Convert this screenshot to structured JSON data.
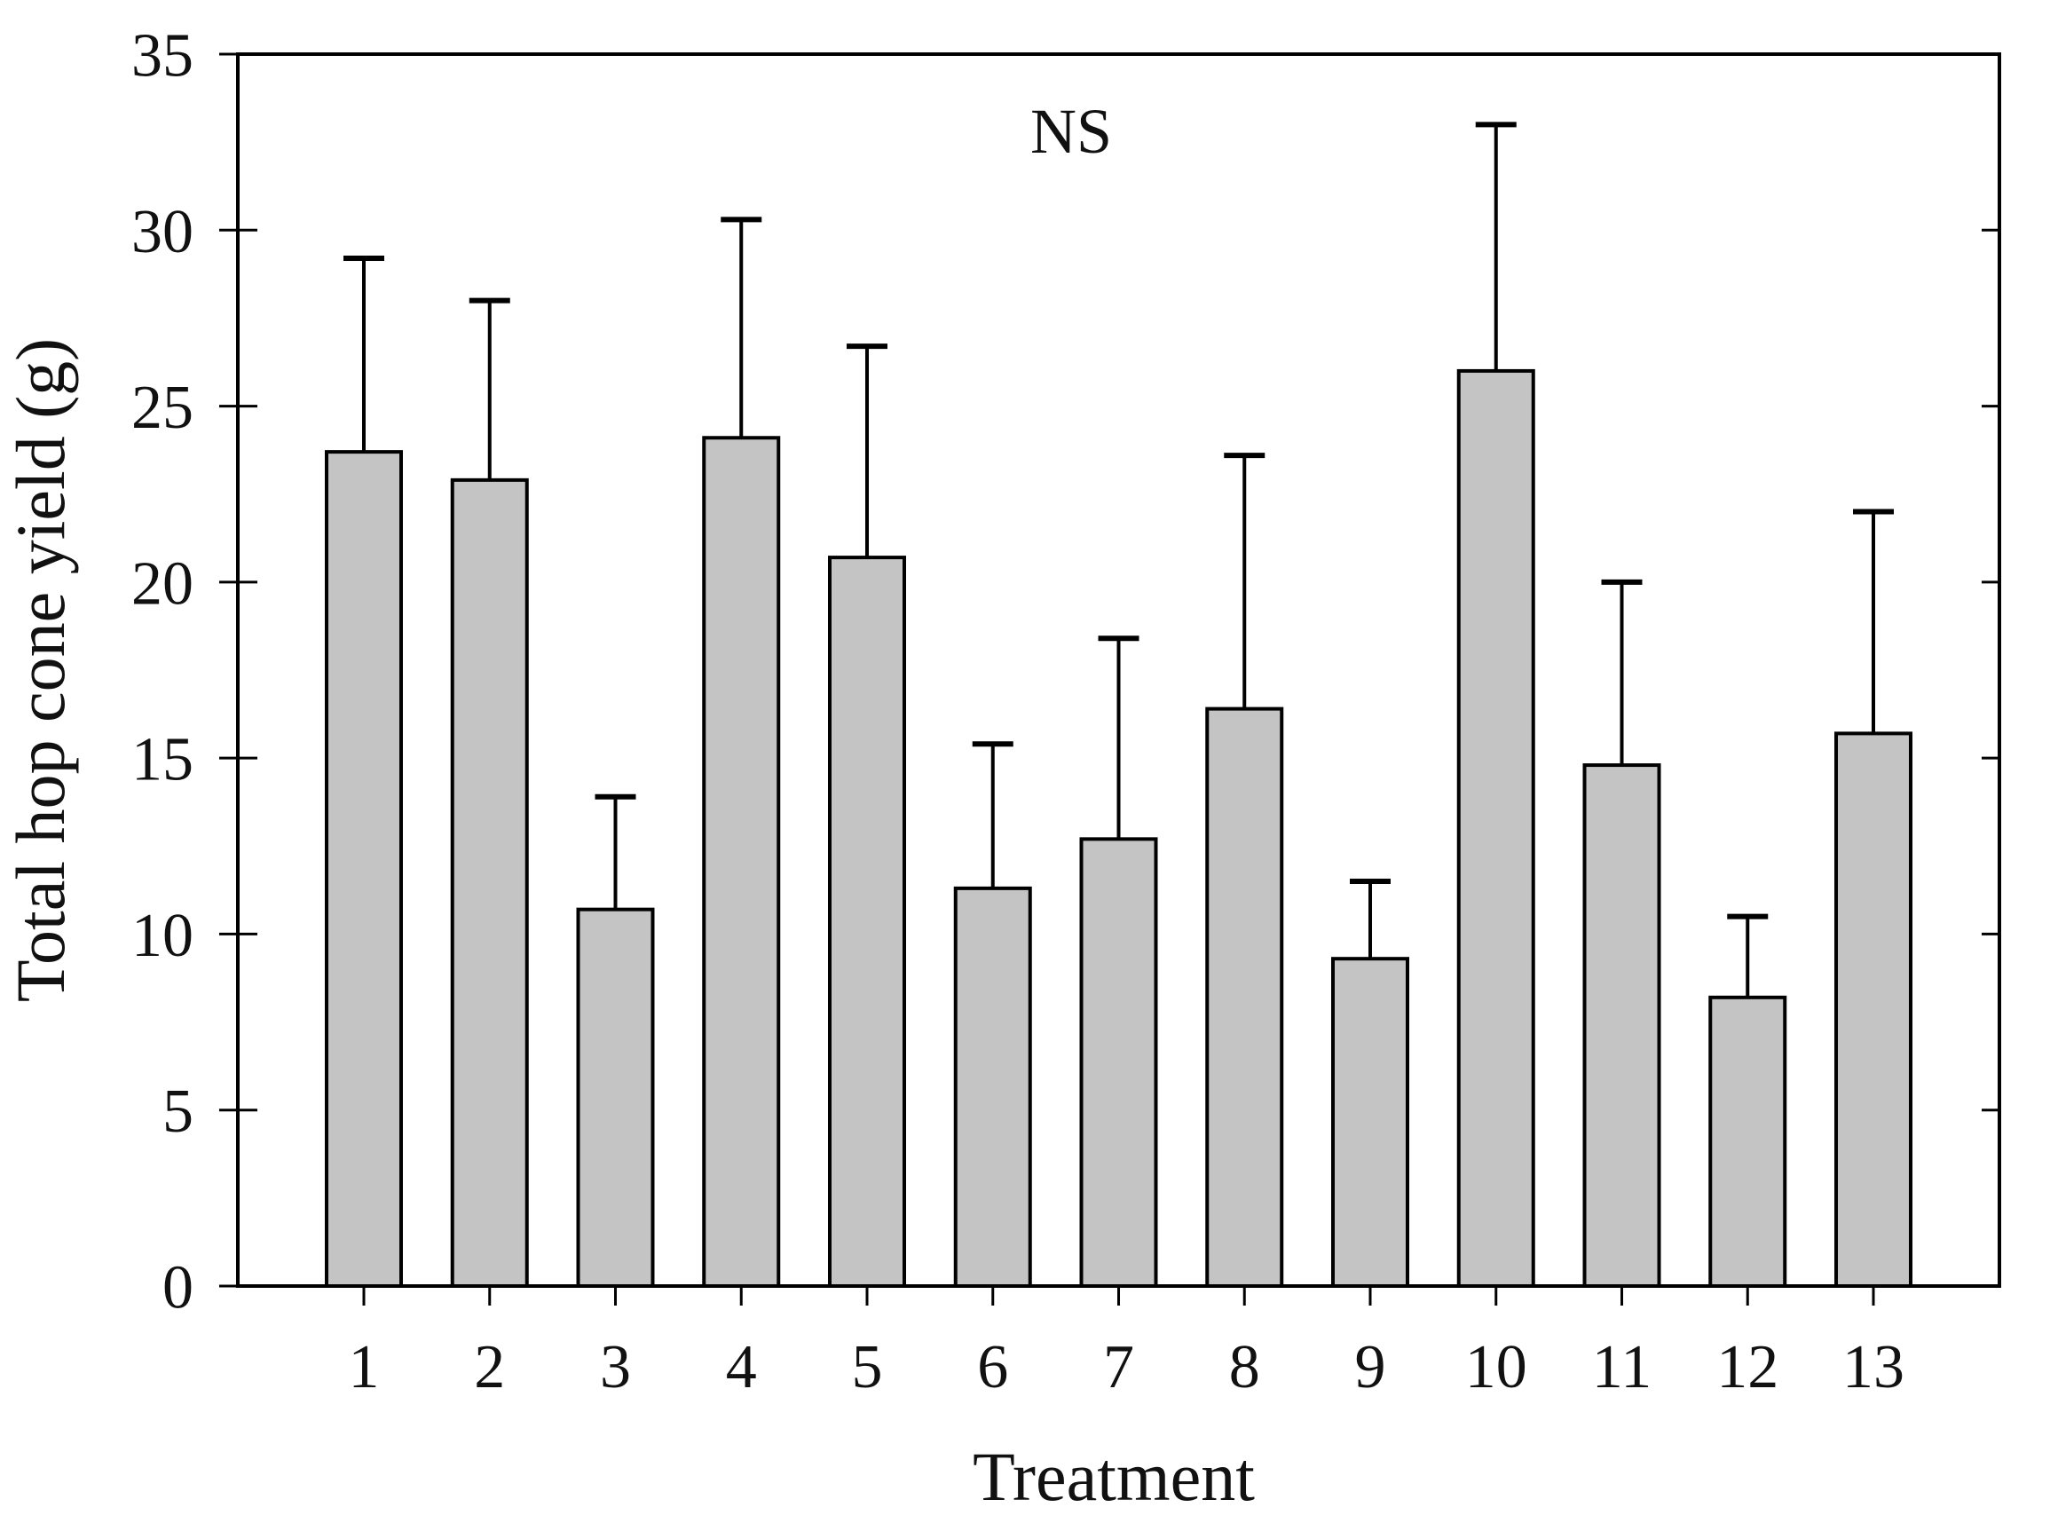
{
  "chart_data": {
    "type": "bar",
    "title": "",
    "annotation": "NS",
    "xlabel": "Treatment",
    "ylabel": "Total hop cone yield (g)",
    "categories": [
      "1",
      "2",
      "3",
      "4",
      "5",
      "6",
      "7",
      "8",
      "9",
      "10",
      "11",
      "12",
      "13"
    ],
    "values": [
      23.7,
      22.9,
      10.7,
      24.1,
      20.7,
      11.3,
      12.7,
      16.4,
      9.3,
      26.0,
      14.8,
      8.2,
      15.7
    ],
    "error_plus": [
      5.5,
      5.1,
      3.2,
      6.2,
      6.0,
      4.1,
      5.7,
      7.2,
      2.2,
      7.0,
      5.2,
      2.3,
      6.3
    ],
    "error_bar_direction": "up",
    "ylim": [
      0,
      35
    ],
    "yticks": [
      0,
      5,
      10,
      15,
      20,
      25,
      30,
      35
    ],
    "grid": false,
    "legend_position": "none",
    "colors": {
      "bar_fill": "#c4c4c4",
      "bar_edge": "#000000",
      "axis": "#000000",
      "background": "#ffffff",
      "text": "#111111"
    }
  }
}
